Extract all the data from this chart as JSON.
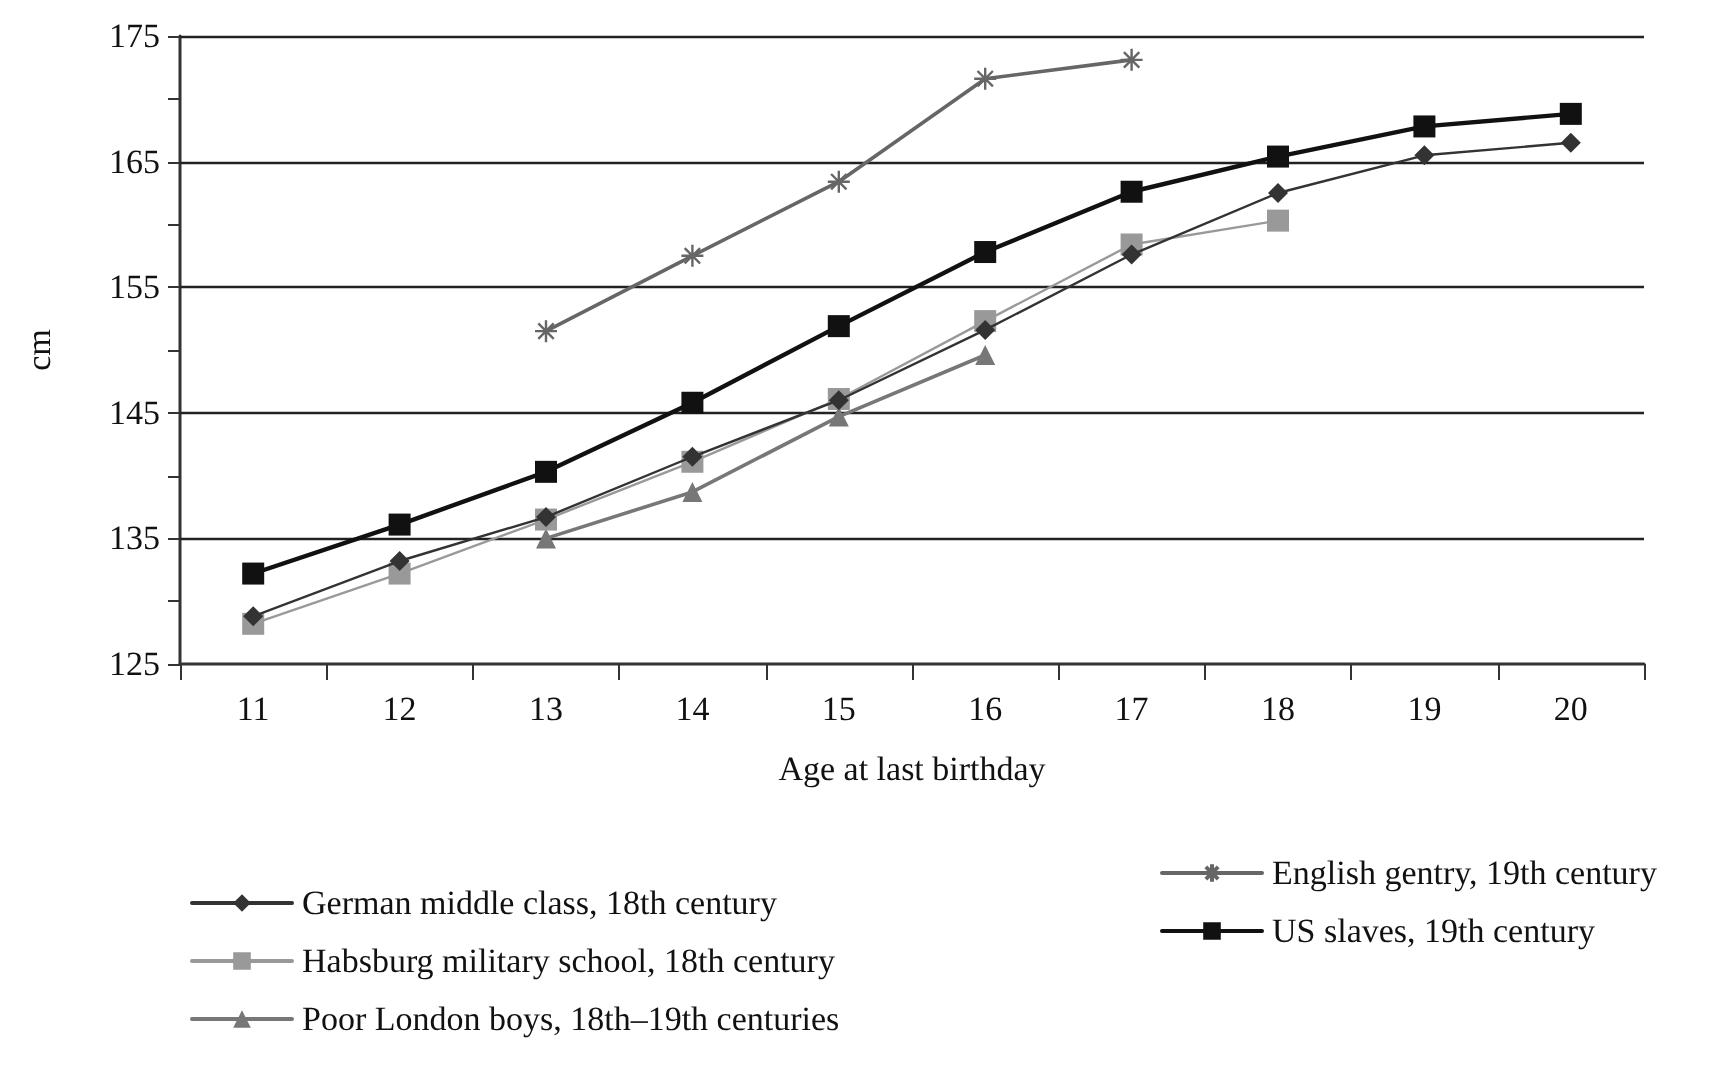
{
  "chart_data": {
    "type": "line",
    "xlabel": "Age at last birthday",
    "ylabel": "cm",
    "categories": [
      "11",
      "12",
      "13",
      "14",
      "15",
      "16",
      "17",
      "18",
      "19",
      "20"
    ],
    "series": [
      {
        "name": "German middle class, 18th century",
        "color": "#333333",
        "marker": "diamond",
        "values": [
          128.8,
          133.2,
          136.7,
          141.5,
          146.0,
          151.6,
          157.6,
          162.5,
          165.5,
          166.5
        ]
      },
      {
        "name": "English gentry, 19th century",
        "color": "#666666",
        "marker": "cross",
        "values": [
          null,
          null,
          151.5,
          157.5,
          163.4,
          171.6,
          173.1,
          null,
          null,
          null
        ]
      },
      {
        "name": "Habsburg military school, 18th century",
        "color": "#999999",
        "marker": "square",
        "values": [
          128.2,
          132.2,
          136.5,
          141.1,
          146.1,
          152.3,
          158.4,
          160.3,
          null,
          null
        ]
      },
      {
        "name": "US slaves, 19th century",
        "color": "#111111",
        "marker": "square",
        "values": [
          132.2,
          136.1,
          140.3,
          145.8,
          151.9,
          157.8,
          162.6,
          165.4,
          167.8,
          168.8
        ]
      },
      {
        "name": "Poor London boys, 18th–19th centuries",
        "color": "#777777",
        "marker": "triangle",
        "values": [
          null,
          null,
          135.0,
          138.7,
          144.7,
          149.6,
          null,
          null,
          null,
          null
        ]
      }
    ],
    "ylim": [
      125,
      175
    ],
    "yticks": [
      125,
      {
        "value": 130,
        "label": null
      },
      135,
      {
        "value": 140,
        "label": null
      },
      145,
      {
        "value": 150,
        "label": null
      },
      155,
      {
        "value": 160,
        "label": null
      },
      165,
      {
        "value": 170,
        "label": null
      },
      175
    ],
    "grid": "y",
    "legend": "bottom",
    "line_style": "solid"
  }
}
